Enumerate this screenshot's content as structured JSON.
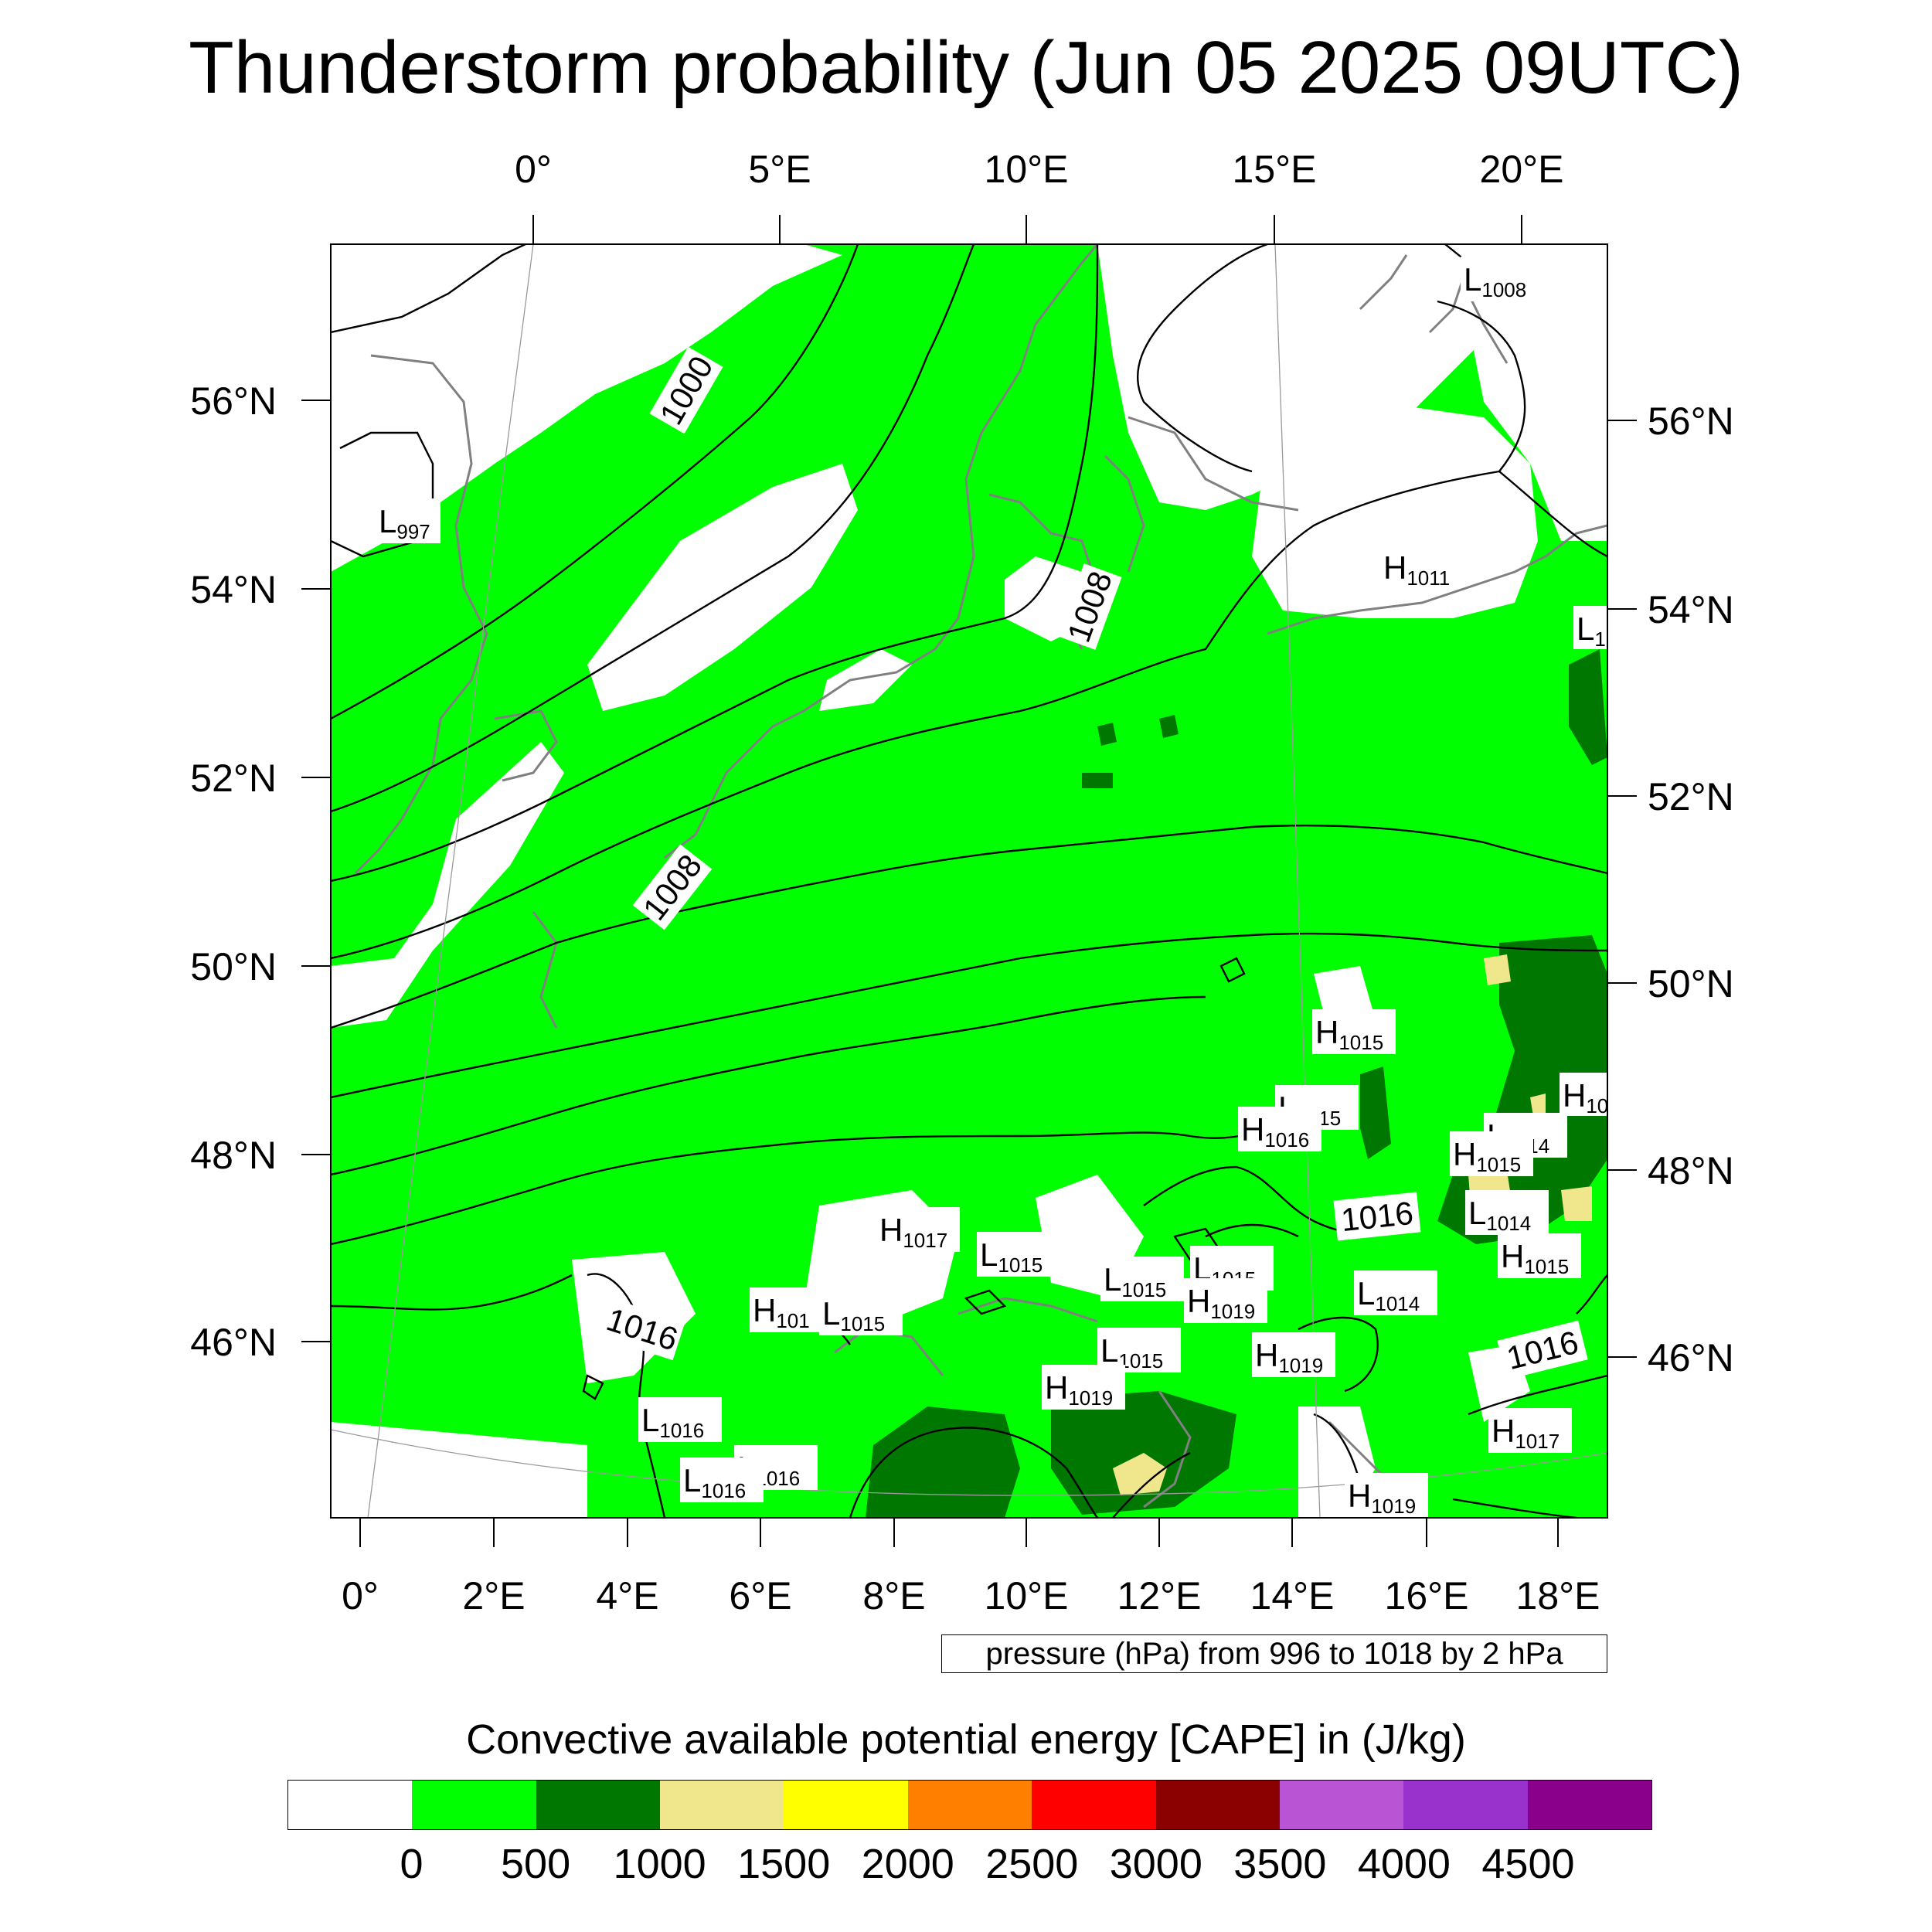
{
  "title": "Thunderstorm probability (Jun 05 2025 09UTC)",
  "top_lon_labels": [
    "0°",
    "5°E",
    "10°E",
    "15°E",
    "20°E"
  ],
  "bottom_lon_labels": [
    "0°",
    "2°E",
    "4°E",
    "6°E",
    "8°E",
    "10°E",
    "12°E",
    "14°E",
    "16°E",
    "18°E"
  ],
  "left_lat_labels": [
    "56°N",
    "54°N",
    "52°N",
    "50°N",
    "48°N",
    "46°N"
  ],
  "right_lat_labels": [
    "56°N",
    "54°N",
    "52°N",
    "50°N",
    "48°N",
    "46°N"
  ],
  "contour_labels": [
    "1000",
    "1008",
    "1008",
    "1016",
    "1016",
    "1016"
  ],
  "pressure_centers": [
    {
      "kind": "L",
      "value": "1008"
    },
    {
      "kind": "L",
      "value": "997"
    },
    {
      "kind": "H",
      "value": "1011"
    },
    {
      "kind": "L",
      "value": "1"
    },
    {
      "kind": "H",
      "value": "1015"
    },
    {
      "kind": "H",
      "value": "10"
    },
    {
      "kind": "L",
      "value": "1015"
    },
    {
      "kind": "H",
      "value": "1016"
    },
    {
      "kind": "L",
      "value": "1014"
    },
    {
      "kind": "H",
      "value": "1015"
    },
    {
      "kind": "L",
      "value": "1014"
    },
    {
      "kind": "H",
      "value": "1015"
    },
    {
      "kind": "H",
      "value": "1017"
    },
    {
      "kind": "L",
      "value": "1015"
    },
    {
      "kind": "L",
      "value": "1015"
    },
    {
      "kind": "L",
      "value": "1015"
    },
    {
      "kind": "H",
      "value": "1019"
    },
    {
      "kind": "L",
      "value": "1014"
    },
    {
      "kind": "H",
      "value": "101"
    },
    {
      "kind": "L",
      "value": "1015"
    },
    {
      "kind": "L",
      "value": "1015"
    },
    {
      "kind": "H",
      "value": "1019"
    },
    {
      "kind": "H",
      "value": "1019"
    },
    {
      "kind": "L",
      "value": "1016"
    },
    {
      "kind": "L",
      "value": "1016"
    },
    {
      "kind": "L",
      "value": "1016"
    },
    {
      "kind": "H",
      "value": "1017"
    },
    {
      "kind": "H",
      "value": "1019"
    }
  ],
  "contour_note": "pressure (hPa) from 996 to 1018 by 2 hPa",
  "colorbar": {
    "title": "Convective available potential energy [CAPE] in (J/kg)",
    "colors": [
      "#ffffff",
      "#00ff00",
      "#007700",
      "#f0e68c",
      "#ffff00",
      "#ff8000",
      "#ff0000",
      "#8b0000",
      "#b954d4",
      "#9932cc",
      "#8b008b"
    ],
    "labels": [
      "0",
      "500",
      "1000",
      "1500",
      "2000",
      "2500",
      "3000",
      "3500",
      "4000",
      "4500"
    ]
  },
  "colors": {
    "cape_0_500": "#00ff00",
    "cape_500_1000": "#007700",
    "cape_1000_1500": "#f0e68c",
    "coastline": "#808080",
    "isobar": "#000000"
  }
}
